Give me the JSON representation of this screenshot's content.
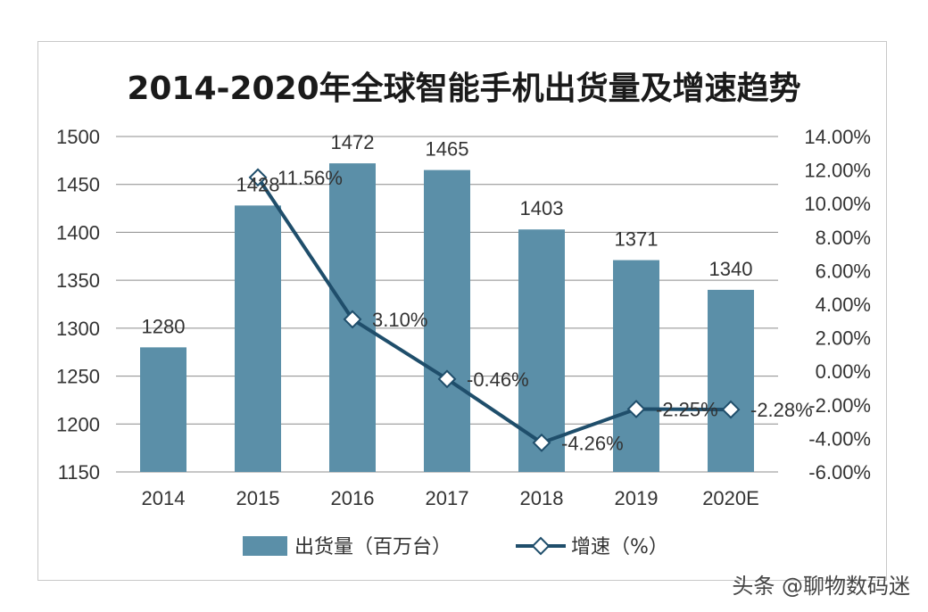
{
  "chart_data": {
    "type": "bar",
    "title": "2014-2020年全球智能手机出货量及增速趋势",
    "categories": [
      "2014",
      "2015",
      "2016",
      "2017",
      "2018",
      "2019",
      "2020E"
    ],
    "series": [
      {
        "name": "出货量（百万台）",
        "type": "bar",
        "axis": "left",
        "values": [
          1280,
          1428,
          1472,
          1465,
          1403,
          1371,
          1340
        ],
        "labels": [
          "1280",
          "1428",
          "1472",
          "1465",
          "1403",
          "1371",
          "1340"
        ],
        "color": "#5b8fa8"
      },
      {
        "name": "增速（%）",
        "type": "line",
        "axis": "right",
        "values": [
          null,
          11.56,
          3.1,
          -0.46,
          -4.26,
          -2.25,
          -2.28
        ],
        "labels": [
          "",
          "11.56%",
          "3.10%",
          "-0.46%",
          "-4.26%",
          "-2.25%",
          "-2.28%"
        ],
        "color": "#1f4e6b"
      }
    ],
    "y_left": {
      "min": 1150,
      "max": 1500,
      "ticks": [
        "1150",
        "1200",
        "1250",
        "1300",
        "1350",
        "1400",
        "1450",
        "1500"
      ]
    },
    "y_right": {
      "min": -6,
      "max": 14,
      "ticks": [
        "-6.00%",
        "-4.00%",
        "-2.00%",
        "0.00%",
        "2.00%",
        "4.00%",
        "6.00%",
        "8.00%",
        "10.00%",
        "12.00%",
        "14.00%"
      ]
    },
    "grid": true,
    "legend_position": "bottom"
  },
  "watermark": "头条 @聊物数码迷"
}
